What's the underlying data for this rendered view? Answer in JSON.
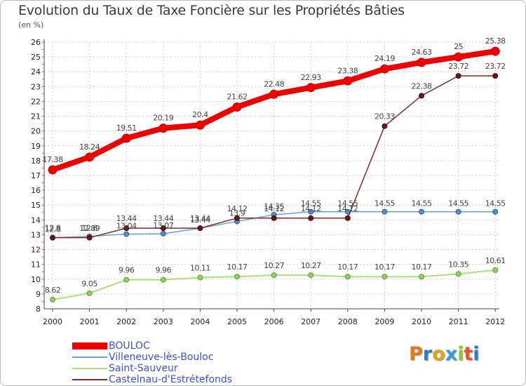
{
  "title": "Evolution du Taux de Taxe Foncière sur les Propriétés Bâties",
  "unit": "(en %)",
  "brand": "Proxiti",
  "brand_colors": [
    "#e07b1c",
    "#2e7fc1",
    "#e2a020",
    "#3c9ad6",
    "#9ac238",
    "#e6562a",
    "#2e7fc1"
  ],
  "chart_data": {
    "type": "line",
    "title": "Evolution du Taux de Taxe Foncière sur les Propriétés Bâties",
    "ylabel": "(en %)",
    "xlabel": "",
    "ylim": [
      8,
      26
    ],
    "yticks": [
      "8",
      "9",
      "10",
      "11",
      "12",
      "13",
      "14",
      "15",
      "16",
      "17",
      "18",
      "19",
      "20",
      "21",
      "22",
      "23",
      "24",
      "25",
      "26"
    ],
    "x": [
      "2000",
      "2001",
      "2002",
      "2003",
      "2004",
      "2005",
      "2006",
      "2007",
      "2008",
      "2009",
      "2010",
      "2011",
      "2012"
    ],
    "grid": true,
    "legend_position": "bottom-left",
    "series": [
      {
        "name": "BOULOC",
        "color": "#ee0000",
        "values": [
          17.38,
          18.24,
          19.51,
          20.19,
          20.4,
          21.62,
          22.48,
          22.93,
          23.38,
          24.19,
          24.63,
          25,
          25.38
        ],
        "labels": [
          "17.38",
          "18.24",
          "19.51",
          "20.19",
          "20.4",
          "21.62",
          "22.48",
          "22.93",
          "23.38",
          "24.19",
          "24.63",
          "25",
          "25.38"
        ]
      },
      {
        "name": "Villeneuve-lès-Bouloc",
        "color": "#6e9fd0",
        "values": [
          12.8,
          12.89,
          13.04,
          13.07,
          13.44,
          13.9,
          14.35,
          14.55,
          14.55,
          14.55,
          14.55,
          14.55,
          14.55
        ],
        "labels": [
          "12.8",
          "12.89",
          "13.04",
          "13.07",
          "13.44",
          "13.9",
          "14.35",
          "14.55",
          "14.55",
          "14.55",
          "14.55",
          "14.55",
          "14.55"
        ]
      },
      {
        "name": "Saint-Sauveur",
        "color": "#a8e07a",
        "values": [
          8.62,
          9.05,
          9.96,
          9.96,
          10.11,
          10.17,
          10.27,
          10.27,
          10.17,
          10.17,
          10.17,
          10.35,
          10.61
        ],
        "labels": [
          "8.62",
          "9.05",
          "9.96",
          "9.96",
          "10.11",
          "10.17",
          "10.27",
          "10.27",
          "10.17",
          "10.17",
          "10.17",
          "10.35",
          "10.61"
        ]
      },
      {
        "name": "Castelnau-d'Estrétefonds",
        "color": "#7a2a2a",
        "values": [
          12.8,
          12.8,
          13.44,
          13.44,
          13.44,
          14.12,
          14.12,
          14.12,
          14.12,
          20.33,
          22.38,
          23.72,
          23.72
        ],
        "labels": [
          "12.8",
          "12.8",
          "13.44",
          "13.44",
          "13.44",
          "14.12",
          "14.12",
          "14.12",
          "14.12",
          "20.33",
          "22.38",
          "23.72",
          "23.72"
        ]
      }
    ]
  }
}
